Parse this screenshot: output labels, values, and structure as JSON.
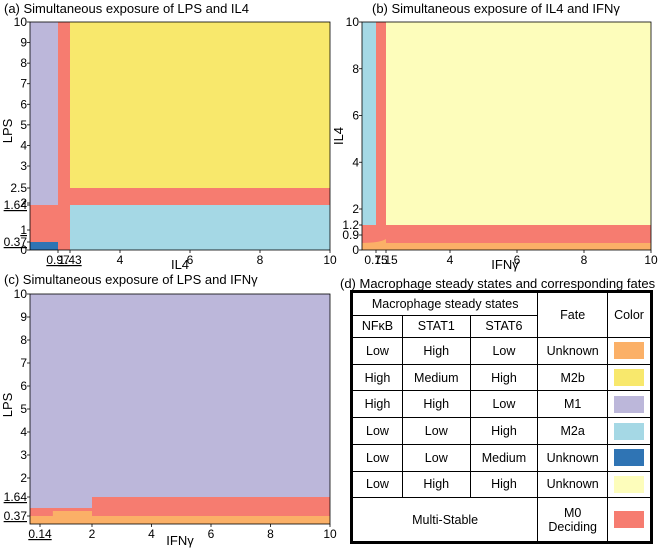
{
  "chart_data": [
    {
      "panel": "a",
      "type": "heatmap",
      "title": "(a) Simultaneous exposure of LPS and IL4",
      "xlabel": "IL4",
      "ylabel": "LPS",
      "xlim": [
        0,
        10
      ],
      "ylim": [
        0,
        10
      ],
      "xticks": [
        {
          "v": 4,
          "t": "4"
        },
        {
          "v": 6,
          "t": "6"
        },
        {
          "v": 8,
          "t": "8"
        },
        {
          "v": 10,
          "t": "10"
        }
      ],
      "xticks_special": [
        {
          "v": 0.97,
          "t": "0.97"
        },
        {
          "v": 1.43,
          "t": "1.43"
        }
      ],
      "yticks": [
        {
          "v": 0,
          "t": "0"
        },
        {
          "v": 2,
          "t": "2"
        },
        {
          "v": 2.5,
          "t": "2.5"
        },
        {
          "v": 3,
          "t": "3"
        },
        {
          "v": 4,
          "t": "4"
        },
        {
          "v": 5,
          "t": "5"
        },
        {
          "v": 6,
          "t": "6"
        },
        {
          "v": 7,
          "t": "7"
        },
        {
          "v": 8,
          "t": "8"
        },
        {
          "v": 9,
          "t": "9"
        },
        {
          "v": 10,
          "t": "10"
        }
      ],
      "yticks_special": [
        {
          "v": 0.37,
          "t": "0.37"
        },
        {
          "v": 1,
          "t": "1"
        },
        {
          "v": 1.64,
          "t": "1.64"
        }
      ],
      "regions": [
        {
          "x": [
            0,
            10
          ],
          "y": [
            0,
            10
          ],
          "fate": "Multi-Stable"
        },
        {
          "x": [
            0,
            0.97
          ],
          "y": [
            1.64,
            10
          ],
          "fate": "M1"
        },
        {
          "x": [
            1.43,
            10
          ],
          "y": [
            2.5,
            10
          ],
          "fate": "M2b"
        },
        {
          "x": [
            1.43,
            10
          ],
          "y": [
            0,
            1.64
          ],
          "fate": "M2a"
        },
        {
          "x": [
            0,
            0.97
          ],
          "y": [
            0,
            0.37
          ],
          "fate": "Unknown (Medium STAT6)"
        }
      ]
    },
    {
      "panel": "b",
      "type": "heatmap",
      "title": "(b) Simultaneous exposure of IL4 and IFNγ",
      "xlabel": "IFNγ",
      "ylabel": "IL4",
      "xlim": [
        0,
        10
      ],
      "ylim": [
        0,
        10
      ],
      "xticks": [
        {
          "v": 4,
          "t": "4"
        },
        {
          "v": 6,
          "t": "6"
        },
        {
          "v": 8,
          "t": "8"
        },
        {
          "v": 10,
          "t": "10"
        }
      ],
      "xticks_special": [
        {
          "v": 0.75,
          "t": "0.75"
        },
        {
          "v": 1.15,
          "t": "1.15"
        }
      ],
      "yticks": [
        {
          "v": 0,
          "t": "0"
        },
        {
          "v": 2,
          "t": "2"
        },
        {
          "v": 4,
          "t": "4"
        },
        {
          "v": 6,
          "t": "6"
        },
        {
          "v": 8,
          "t": "8"
        },
        {
          "v": 10,
          "t": "10"
        }
      ],
      "yticks_special": [
        {
          "v": 0.9,
          "t": "0.9"
        },
        {
          "v": 1.2,
          "t": "1.2"
        }
      ],
      "regions": [
        {
          "x": [
            0,
            10
          ],
          "y": [
            0,
            10
          ],
          "fate": "Multi-Stable"
        },
        {
          "x": [
            0,
            0.75
          ],
          "y": [
            1.2,
            10
          ],
          "fate": "M2a"
        },
        {
          "x": [
            1.15,
            10
          ],
          "y": [
            1.2,
            10
          ],
          "fate": "Unknown (High STAT1, High STAT6)"
        },
        {
          "x": [
            1.15,
            10
          ],
          "y": [
            0,
            0.3
          ],
          "fate": "Unknown (Low NFkB, High STAT1)"
        }
      ]
    },
    {
      "panel": "c",
      "type": "heatmap",
      "title": "(c) Simultaneous exposure of LPS and IFNγ",
      "xlabel": "IFNγ",
      "ylabel": "LPS",
      "xlim": [
        0,
        10
      ],
      "ylim": [
        0,
        10
      ],
      "xticks": [
        {
          "v": 2,
          "t": "2"
        },
        {
          "v": 4,
          "t": "4"
        },
        {
          "v": 6,
          "t": "6"
        },
        {
          "v": 8,
          "t": "8"
        },
        {
          "v": 10,
          "t": "10"
        }
      ],
      "xticks_special": [
        {
          "v": 0.14,
          "t": "0.14"
        }
      ],
      "yticks": [
        {
          "v": 2,
          "t": "2"
        },
        {
          "v": 3,
          "t": "3"
        },
        {
          "v": 4,
          "t": "4"
        },
        {
          "v": 5,
          "t": "5"
        },
        {
          "v": 6,
          "t": "6"
        },
        {
          "v": 7,
          "t": "7"
        },
        {
          "v": 8,
          "t": "8"
        },
        {
          "v": 9,
          "t": "9"
        },
        {
          "v": 10,
          "t": "10"
        }
      ],
      "yticks_special": [
        {
          "v": 0.37,
          "t": "0.37"
        },
        {
          "v": 1.64,
          "t": "1.64"
        }
      ],
      "regions": [
        {
          "x": [
            0,
            10
          ],
          "y": [
            0,
            10
          ],
          "fate": "M1"
        },
        {
          "x": [
            0,
            10
          ],
          "y": [
            0,
            0.37
          ],
          "fate": "Unknown (Low NFkB, High STAT1)"
        },
        {
          "x": [
            0,
            2
          ],
          "y": [
            0.37,
            1.1
          ],
          "fate": "Multi-Stable"
        },
        {
          "x": [
            2,
            10
          ],
          "y": [
            0.37,
            1.64
          ],
          "fate": "Multi-Stable"
        },
        {
          "x": [
            0.6,
            2
          ],
          "y": [
            0.05,
            0.75
          ],
          "fate": "Unknown (Low NFkB, High STAT1)"
        }
      ]
    }
  ],
  "colors": {
    "unknown_orange": "#fbb067",
    "m2b": "#f8e86c",
    "m1": "#bcb7da",
    "m2a": "#a5d8e5",
    "unknown_blue": "#2f74b4",
    "unknown_pale": "#fdfdbb",
    "multistable": "#f67c70"
  },
  "legend": {
    "title": "(d) Macrophage steady states and corresponding fates",
    "group_header": "Macrophage steady states",
    "col_nfkb": "NFκB",
    "col_stat1": "STAT1",
    "col_stat6": "STAT6",
    "col_fate": "Fate",
    "col_color": "Color",
    "rows": [
      {
        "nfkb": "Low",
        "stat1": "High",
        "stat6": "Low",
        "fate": "Unknown",
        "color": "#fbb067"
      },
      {
        "nfkb": "High",
        "stat1": "Medium",
        "stat6": "High",
        "fate": "M2b",
        "color": "#f8e86c"
      },
      {
        "nfkb": "High",
        "stat1": "High",
        "stat6": "Low",
        "fate": "M1",
        "color": "#bcb7da"
      },
      {
        "nfkb": "Low",
        "stat1": "Low",
        "stat6": "High",
        "fate": "M2a",
        "color": "#a5d8e5"
      },
      {
        "nfkb": "Low",
        "stat1": "Low",
        "stat6": "Medium",
        "fate": "Unknown",
        "color": "#2f74b4"
      },
      {
        "nfkb": "Low",
        "stat1": "High",
        "stat6": "High",
        "fate": "Unknown",
        "color": "#fdfdbb"
      }
    ],
    "last_row": {
      "label": "Multi-Stable",
      "fate_line1": "M0",
      "fate_line2": "Deciding",
      "color": "#f67c70"
    }
  }
}
